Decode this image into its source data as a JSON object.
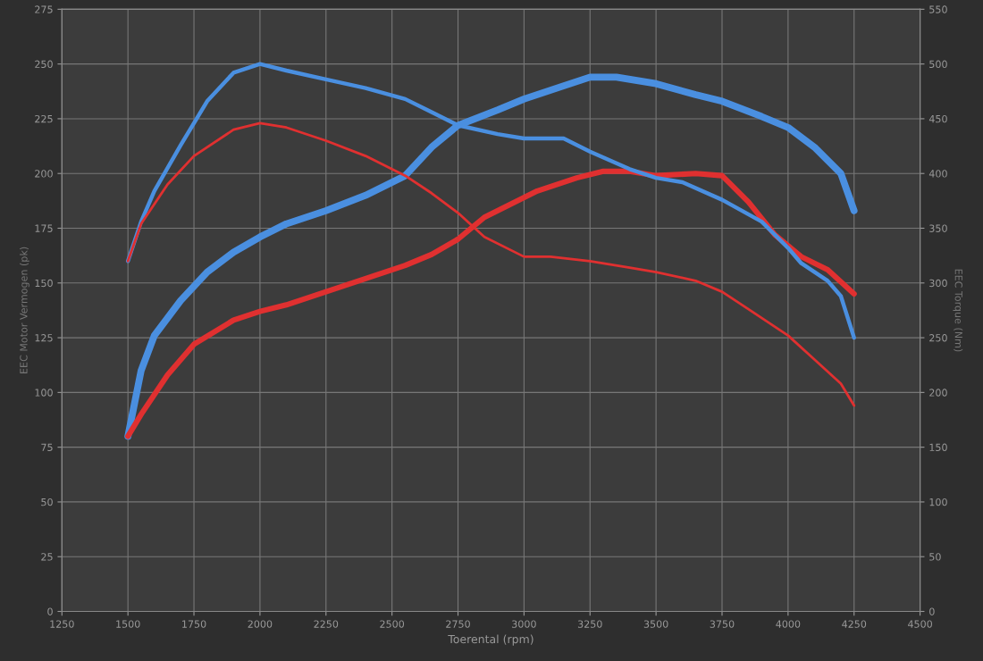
{
  "chart_data": {
    "type": "line",
    "xlabel": "Toerental (rpm)",
    "ylabel": "EEC Motor Vermogen (pk)",
    "y2label": "EEC Torque (Nm)",
    "xlim": [
      1250,
      4500
    ],
    "xticks": [
      1250,
      1500,
      1750,
      2000,
      2250,
      2500,
      2750,
      3000,
      3250,
      3500,
      3750,
      4000,
      4250,
      4500
    ],
    "ylim": [
      0,
      275
    ],
    "yticks": [
      0,
      25,
      50,
      75,
      100,
      125,
      150,
      175,
      200,
      225,
      250,
      275
    ],
    "y2lim": [
      0,
      550
    ],
    "y2ticks": [
      0,
      50,
      100,
      150,
      200,
      250,
      300,
      350,
      400,
      450,
      500,
      550
    ],
    "grid": true,
    "legend": false,
    "series": [
      {
        "color": "#4a8fe0",
        "x": [
          1500,
          1550,
          1600,
          1700,
          1800,
          1900,
          2000,
          2100,
          2250,
          2400,
          2550,
          2650,
          2750,
          2900,
          3000,
          3150,
          3250,
          3350,
          3500,
          3650,
          3750,
          3900,
          4000,
          4100,
          4200,
          4250
        ],
        "values": [
          80,
          110,
          126,
          142,
          155,
          164,
          171,
          177,
          183,
          190,
          199,
          212,
          222,
          229,
          234,
          240,
          244,
          244,
          241,
          236,
          233,
          226,
          221,
          212,
          200,
          183
        ]
      },
      {
        "color": "#e03030",
        "x": [
          1500,
          1550,
          1650,
          1750,
          1900,
          2000,
          2100,
          2250,
          2400,
          2550,
          2650,
          2750,
          2850,
          2950,
          3050,
          3200,
          3300,
          3400,
          3500,
          3650,
          3750,
          3850,
          3950,
          4050,
          4150,
          4250
        ],
        "values": [
          80,
          90,
          108,
          122,
          133,
          137,
          140,
          146,
          152,
          158,
          163,
          170,
          180,
          186,
          192,
          198,
          201,
          201,
          199,
          200,
          199,
          187,
          172,
          162,
          156,
          145
        ]
      },
      {
        "color": "#4a8fe0",
        "axis": "y2",
        "x": [
          1500,
          1550,
          1600,
          1700,
          1800,
          1900,
          2000,
          2100,
          2250,
          2400,
          2550,
          2650,
          2750,
          2900,
          3000,
          3150,
          3250,
          3400,
          3500,
          3600,
          3750,
          3900,
          4000,
          4050,
          4150,
          4200,
          4250
        ],
        "values": [
          320,
          356,
          384,
          426,
          466,
          492,
          500,
          494,
          486,
          478,
          468,
          456,
          444,
          436,
          432,
          432,
          420,
          404,
          396,
          392,
          376,
          356,
          332,
          318,
          302,
          288,
          250
        ]
      },
      {
        "color": "#e03030",
        "axis": "y2",
        "x": [
          1500,
          1550,
          1650,
          1750,
          1900,
          2000,
          2100,
          2250,
          2400,
          2550,
          2650,
          2750,
          2850,
          3000,
          3100,
          3250,
          3400,
          3500,
          3650,
          3750,
          3850,
          4000,
          4100,
          4200,
          4250
        ],
        "values": [
          320,
          354,
          390,
          416,
          440,
          446,
          442,
          430,
          416,
          398,
          382,
          364,
          342,
          324,
          324,
          320,
          314,
          310,
          302,
          292,
          276,
          252,
          230,
          208,
          188
        ]
      }
    ]
  }
}
